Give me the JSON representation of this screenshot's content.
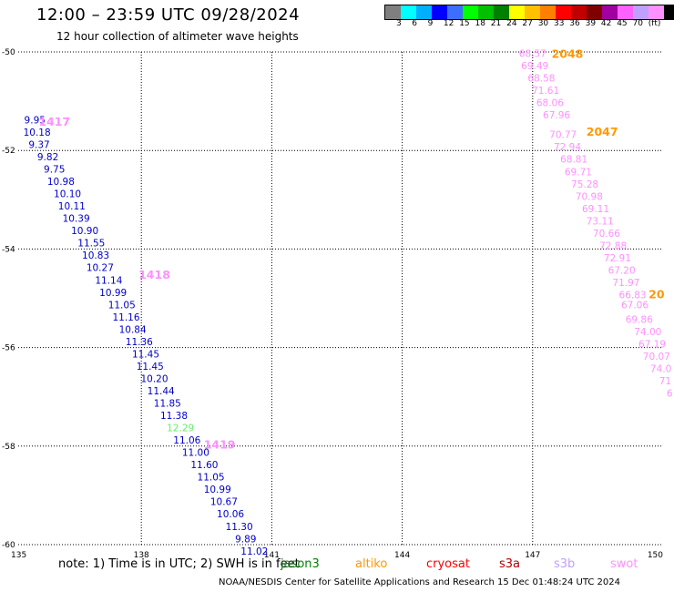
{
  "header": {
    "title": "12:00 – 23:59 UTC 09/28/2024",
    "subtitle": "12 hour collection of altimeter wave heights"
  },
  "colorbar": {
    "colors": [
      "#7f7f7f",
      "#00ffff",
      "#00b0ff",
      "#0000ff",
      "#3c6fff",
      "#00ff00",
      "#00c000",
      "#008000",
      "#ffff00",
      "#ffc000",
      "#ff8000",
      "#ff0000",
      "#c00000",
      "#800000",
      "#a000a0",
      "#ff60ff",
      "#c0a0ff",
      "#ff90ff",
      "#000000"
    ],
    "labels": [
      "3",
      "6",
      "9",
      "12",
      "15",
      "18",
      "21",
      "24",
      "27",
      "30",
      "33",
      "36",
      "39",
      "42",
      "45",
      "70",
      "(ft)"
    ]
  },
  "footer": {
    "note": "note:  1) Time is in UTC; 2) SWH is in feet",
    "satellites": [
      {
        "name": "jason3",
        "color": "#008000"
      },
      {
        "name": "altiko",
        "color": "#ff9900"
      },
      {
        "name": "cryosat",
        "color": "#ff0000"
      },
      {
        "name": "s3a",
        "color": "#b00000"
      },
      {
        "name": "s3b",
        "color": "#c0a0ff"
      },
      {
        "name": "swot",
        "color": "#ff90ff"
      }
    ],
    "credit": "NOAA/NESDIS Center for Satellite Applications and Research     15 Dec 01:48:24 UTC 2024"
  },
  "chart_data": {
    "type": "scatter",
    "xlim": [
      135,
      150
    ],
    "ylim": [
      -60,
      -50
    ],
    "xticks": [
      135,
      138,
      141,
      144,
      147,
      150
    ],
    "yticks": [
      -50,
      -52,
      -54,
      -56,
      -58,
      -60
    ],
    "grid": true,
    "track_labels": [
      {
        "text": "1417",
        "color": "#ff90ff",
        "x": 136.0,
        "y": -51.5
      },
      {
        "text": "1418",
        "color": "#ff90ff",
        "x": 138.3,
        "y": -54.6
      },
      {
        "text": "1419",
        "color": "#ff90ff",
        "x": 139.8,
        "y": -58.05
      },
      {
        "text": "2048",
        "color": "#ff9900",
        "x": 147.8,
        "y": -50.12
      },
      {
        "text": "2047",
        "color": "#ff9900",
        "x": 148.6,
        "y": -51.7
      },
      {
        "text": "20",
        "color": "#ff9900",
        "x": 149.85,
        "y": -55.0
      }
    ],
    "series": [
      {
        "color": "#0000cc",
        "points": [
          [
            135.55,
            -51.45,
            "9.95"
          ],
          [
            135.6,
            -51.7,
            "10.18"
          ],
          [
            135.65,
            -51.95,
            "9.37"
          ],
          [
            135.85,
            -52.2,
            "9.82"
          ],
          [
            136.0,
            -52.45,
            "9.75"
          ],
          [
            136.15,
            -52.7,
            "10.98"
          ],
          [
            136.3,
            -52.95,
            "10.10"
          ],
          [
            136.4,
            -53.2,
            "10.11"
          ],
          [
            136.5,
            -53.45,
            "10.39"
          ],
          [
            136.7,
            -53.7,
            "10.90"
          ],
          [
            136.85,
            -53.95,
            "11.55"
          ],
          [
            136.95,
            -54.2,
            "10.83"
          ],
          [
            137.05,
            -54.45,
            "10.27"
          ],
          [
            137.25,
            -54.7,
            "11.14"
          ],
          [
            137.35,
            -54.95,
            "10.99"
          ],
          [
            137.55,
            -55.2,
            "11.05"
          ],
          [
            137.65,
            -55.45,
            "11.16"
          ],
          [
            137.8,
            -55.7,
            "10.84"
          ],
          [
            137.95,
            -55.95,
            "11.36"
          ],
          [
            138.1,
            -56.2,
            "11.45"
          ],
          [
            138.2,
            -56.45,
            "11.45"
          ],
          [
            138.3,
            -56.7,
            "10.20"
          ],
          [
            138.45,
            -56.95,
            "11.44"
          ],
          [
            138.6,
            -57.2,
            "11.85"
          ],
          [
            138.75,
            -57.45,
            "11.38"
          ],
          [
            139.05,
            -57.95,
            "11.06"
          ],
          [
            139.25,
            -58.2,
            "11.00"
          ],
          [
            139.45,
            -58.45,
            "11.60"
          ],
          [
            139.6,
            -58.7,
            "11.05"
          ],
          [
            139.75,
            -58.95,
            "10.99"
          ],
          [
            139.9,
            -59.2,
            "10.67"
          ],
          [
            140.05,
            -59.45,
            "10.06"
          ],
          [
            140.25,
            -59.7,
            "11.30"
          ],
          [
            140.4,
            -59.95,
            "9.89"
          ],
          [
            140.6,
            -60.2,
            "11.02"
          ]
        ]
      },
      {
        "color": "#66ee66",
        "points": [
          [
            138.9,
            -57.7,
            "12.29"
          ]
        ]
      },
      {
        "color": "#ff90ff",
        "points": [
          [
            147.0,
            -50.1,
            "68.57"
          ],
          [
            147.05,
            -50.35,
            "69.49"
          ],
          [
            147.2,
            -50.6,
            "68.58"
          ],
          [
            147.3,
            -50.85,
            "71.61"
          ],
          [
            147.4,
            -51.1,
            "68.06"
          ],
          [
            147.55,
            -51.35,
            "67.96"
          ],
          [
            147.7,
            -51.75,
            "70.77"
          ],
          [
            147.8,
            -52.0,
            "72.94"
          ],
          [
            147.95,
            -52.25,
            "68.81"
          ],
          [
            148.05,
            -52.5,
            "69.71"
          ],
          [
            148.2,
            -52.75,
            "75.28"
          ],
          [
            148.3,
            -53.0,
            "70.98"
          ],
          [
            148.45,
            -53.25,
            "69.11"
          ],
          [
            148.55,
            -53.5,
            "73.11"
          ],
          [
            148.7,
            -53.75,
            "70.66"
          ],
          [
            148.85,
            -54.0,
            "72.88"
          ],
          [
            148.95,
            -54.25,
            "72.91"
          ],
          [
            149.05,
            -54.5,
            "67.20"
          ],
          [
            149.15,
            -54.75,
            "71.97"
          ],
          [
            149.3,
            -55.0,
            "66.83"
          ],
          [
            149.35,
            -55.2,
            "67.06"
          ],
          [
            149.45,
            -55.5,
            "69.86"
          ],
          [
            149.65,
            -55.75,
            "74.00"
          ],
          [
            149.75,
            -56.0,
            "67.19"
          ],
          [
            149.85,
            -56.25,
            "70.07"
          ],
          [
            149.95,
            -56.5,
            "74.0"
          ],
          [
            150.05,
            -56.75,
            "71"
          ],
          [
            150.15,
            -57.0,
            "6"
          ]
        ]
      }
    ]
  }
}
